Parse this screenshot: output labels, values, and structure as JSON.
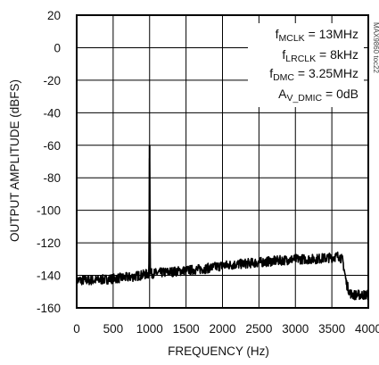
{
  "chart_data": {
    "type": "line",
    "xlabel": "FREQUENCY (Hz)",
    "ylabel": "OUTPUT AMPLITUDE (dBFS)",
    "xlim": [
      0,
      4000
    ],
    "ylim": [
      -160,
      20
    ],
    "xticks": [
      "0",
      "500",
      "1000",
      "1500",
      "2000",
      "2500",
      "3000",
      "3500",
      "4000"
    ],
    "yticks": [
      "20",
      "0",
      "-20",
      "-40",
      "-60",
      "-80",
      "-100",
      "-120",
      "-140",
      "-160"
    ],
    "grid": true,
    "series": [
      {
        "x": [
          0,
          250,
          500,
          750,
          990,
          1000,
          1010,
          1250,
          1500,
          1750,
          2000,
          2250,
          2500,
          2750,
          3000,
          3250,
          3500,
          3600,
          3650,
          3700,
          3750,
          3800,
          4000
        ],
        "y": [
          -143,
          -143,
          -142,
          -141,
          -139,
          -60,
          -139,
          -138,
          -137,
          -136,
          -134,
          -133,
          -132,
          -131,
          -130,
          -130,
          -129,
          -128,
          -131,
          -145,
          -151,
          -152,
          -152
        ]
      }
    ],
    "annotations": {
      "line1": {
        "main": "f",
        "sub": "MCLK",
        "rest": " = 13MHz"
      },
      "line2": {
        "main": "f",
        "sub": "LRCLK",
        "rest": " = 8kHz"
      },
      "line3": {
        "main": "f",
        "sub": "DMC",
        "rest": " = 3.25MHz"
      },
      "line4": {
        "main": "A",
        "sub": "V_DMIC",
        "rest": " = 0dB"
      }
    },
    "watermark": "MAX9860 toc22"
  }
}
